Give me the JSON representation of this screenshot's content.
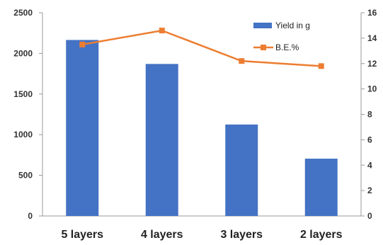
{
  "chart_data": {
    "type": "bar",
    "categories": [
      "5 layers",
      "4 layers",
      "3 layers",
      "2 layers"
    ],
    "series": [
      {
        "name": "Yield in g",
        "type": "bar",
        "axis": "left",
        "color": "#4472C4",
        "values": [
          2165,
          1870,
          1125,
          705
        ]
      },
      {
        "name": "B.E.%",
        "type": "line",
        "axis": "right",
        "color": "#ED7D31",
        "marker": "square",
        "values": [
          13.5,
          14.6,
          12.2,
          11.8
        ]
      }
    ],
    "y_left": {
      "lim": [
        0,
        2500
      ],
      "ticks": [
        0,
        500,
        1000,
        1500,
        2000,
        2500
      ]
    },
    "y_right": {
      "lim": [
        0,
        16
      ],
      "ticks": [
        0,
        2,
        4,
        6,
        8,
        10,
        12,
        14,
        16
      ]
    },
    "legend": {
      "placement": "top-right"
    },
    "grid": false
  }
}
